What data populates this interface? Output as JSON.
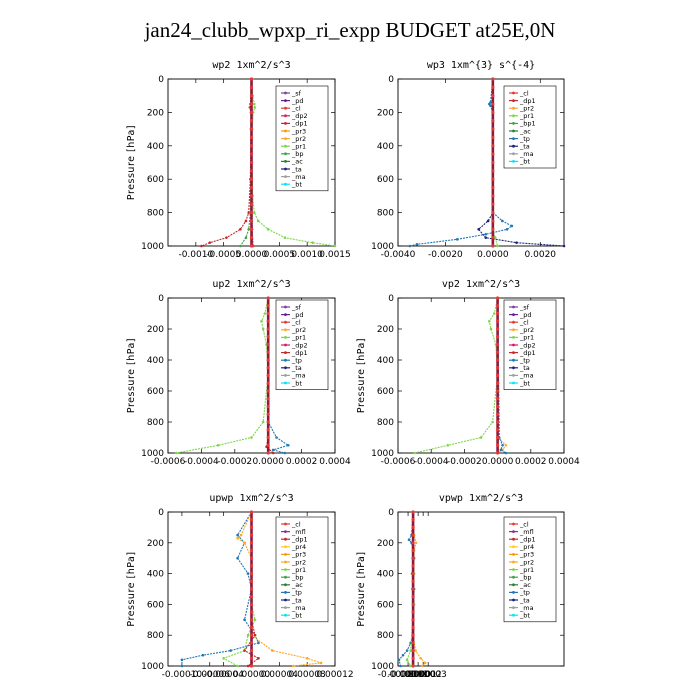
{
  "title": "jan24_clubb_wpxp_ri_expp  BUDGET at25E,0N",
  "colors": {
    "sf": "#7b3fa0",
    "pd": "#6a1b9a",
    "cl": "#e53935",
    "dp2": "#d81b60",
    "dp1": "#c62828",
    "pr3": "#ff9800",
    "pr2": "#ffa726",
    "pr1": "#7cd64a",
    "bp": "#43a047",
    "ac": "#2e7d32",
    "tp": "#1f78b4",
    "ta": "#1a237e",
    "ma": "#9e9e9e",
    "bt": "#00e5ff",
    "mfl": "#8e24aa",
    "pr4": "#ffca28"
  },
  "chart_data": [
    {
      "type": "line",
      "title": "wp2  1xm^2/s^3",
      "ylabel": "Pressure [hPa]",
      "xlim": [
        -0.0015,
        0.0015
      ],
      "ylim": [
        1000,
        0
      ],
      "yticks": [
        0,
        200,
        400,
        600,
        800,
        1000
      ],
      "xtick_labels": [
        "-0.0010",
        "-0.0005",
        "0.0000",
        "0.0005",
        "0.0010",
        "0.0015"
      ],
      "xtick_values": [
        -0.001,
        -0.0005,
        0,
        0.0005,
        0.001,
        0.0015
      ],
      "legend": [
        "_sf",
        "_pd",
        "_cl",
        "_dp2",
        "_dp1",
        "_pr3",
        "_pr2",
        "_pr1",
        "_bp",
        "_ac",
        "_ta",
        "_ma",
        "_bt"
      ],
      "legend_keys": [
        "sf",
        "pd",
        "cl",
        "dp2",
        "dp1",
        "pr3",
        "pr2",
        "pr1",
        "bp",
        "ac",
        "ta",
        "ma",
        "bt"
      ],
      "series": [
        {
          "name": "_pr1",
          "key": "pr1",
          "y": [
            0,
            100,
            150,
            170,
            200,
            300,
            500,
            700,
            800,
            850,
            900,
            950,
            980,
            1000
          ],
          "x": [
            1e-05,
            2e-05,
            5e-05,
            6e-05,
            3e-05,
            1e-05,
            1e-05,
            2e-05,
            5e-05,
            0.00012,
            0.0003,
            0.0006,
            0.0011,
            0.0015
          ]
        },
        {
          "name": "_dp1",
          "key": "dp1",
          "y": [
            0,
            300,
            600,
            800,
            850,
            900,
            950,
            980,
            1000
          ],
          "x": [
            0,
            -1e-05,
            -2e-05,
            -5e-05,
            -0.0001,
            -0.0002,
            -0.00045,
            -0.00075,
            -0.0009
          ]
        },
        {
          "name": "_bp",
          "key": "bp",
          "y": [
            0,
            500,
            800,
            900,
            950,
            1000
          ],
          "x": [
            0,
            0,
            -2e-05,
            -5e-05,
            -0.0001,
            -0.0002
          ]
        },
        {
          "name": "_cl",
          "key": "cl",
          "y": [
            0,
            150,
            170,
            200,
            500,
            900,
            1000
          ],
          "x": [
            0,
            -2e-05,
            -3e-05,
            -1e-05,
            0,
            1e-05,
            3e-05
          ]
        },
        {
          "name": "_pd",
          "key": "pd",
          "y": [
            0,
            500,
            1000
          ],
          "x": [
            0,
            0,
            0
          ]
        }
      ]
    },
    {
      "type": "line",
      "title": "wp3  1xm^{3} s^{-4}",
      "ylabel": "",
      "xlim": [
        -0.004,
        0.003
      ],
      "ylim": [
        1000,
        0
      ],
      "yticks": [
        0,
        200,
        400,
        600,
        800,
        1000
      ],
      "xtick_labels": [
        "-0.0040",
        "-0.0020",
        "0.0000",
        "0.0020"
      ],
      "xtick_values": [
        -0.004,
        -0.002,
        0,
        0.002
      ],
      "legend": [
        "_cl",
        "_dp1",
        "_pr2",
        "_pr1",
        "_bp1",
        "_ac",
        "_tp",
        "_ta",
        "_ma",
        "_bt"
      ],
      "legend_keys": [
        "cl",
        "dp1",
        "pr2",
        "pr1",
        "bp",
        "ac",
        "tp",
        "ta",
        "ma",
        "bt"
      ],
      "series": [
        {
          "name": "_tp",
          "key": "tp",
          "y": [
            0,
            140,
            150,
            160,
            200,
            800,
            850,
            880,
            900,
            930,
            960,
            990,
            1000
          ],
          "x": [
            0,
            -0.0001,
            -0.00015,
            -0.0001,
            0,
            0,
            0.0004,
            0.0008,
            0.0006,
            -0.0003,
            -0.0015,
            -0.0032,
            -0.0035
          ]
        },
        {
          "name": "_ta",
          "key": "ta",
          "y": [
            0,
            800,
            850,
            900,
            950,
            980,
            1000
          ],
          "x": [
            0,
            0,
            -0.0002,
            -0.0006,
            -0.0003,
            0.001,
            0.003
          ]
        },
        {
          "name": "_pr1",
          "key": "pr1",
          "y": [
            0,
            900,
            950,
            1000
          ],
          "x": [
            0,
            0,
            0.0001,
            0.0002
          ]
        },
        {
          "name": "_cl",
          "key": "cl",
          "y": [
            0,
            500,
            1000
          ],
          "x": [
            0,
            0,
            0
          ]
        }
      ]
    },
    {
      "type": "line",
      "title": "up2  1xm^2/s^3",
      "ylabel": "Pressure [hPa]",
      "xlim": [
        -0.0006,
        0.0004
      ],
      "ylim": [
        1000,
        0
      ],
      "yticks": [
        0,
        200,
        400,
        600,
        800,
        1000
      ],
      "xtick_labels": [
        "-0.0006",
        "-0.0004",
        "-0.0002",
        "0.0000",
        "0.0002",
        "0.0004"
      ],
      "xtick_values": [
        -0.0006,
        -0.0004,
        -0.0002,
        0,
        0.0002,
        0.0004
      ],
      "legend": [
        "_sf",
        "_pd",
        "_cl",
        "_pr2",
        "_pr1",
        "_dp2",
        "_dp1",
        "_tp",
        "_ta",
        "_ma",
        "_bt"
      ],
      "legend_keys": [
        "sf",
        "pd",
        "cl",
        "pr2",
        "pr1",
        "dp2",
        "dp1",
        "tp",
        "ta",
        "ma",
        "bt"
      ],
      "series": [
        {
          "name": "_pr1",
          "key": "pr1",
          "y": [
            0,
            100,
            150,
            200,
            300,
            500,
            800,
            900,
            950,
            1000
          ],
          "x": [
            0,
            -2e-05,
            -4e-05,
            -3e-05,
            -1e-05,
            0,
            -3e-05,
            -0.0001,
            -0.0003,
            -0.00055
          ]
        },
        {
          "name": "_tp",
          "key": "tp",
          "y": [
            0,
            800,
            900,
            950,
            980,
            1000
          ],
          "x": [
            0,
            0,
            5e-05,
            0.00012,
            3e-05,
            0.0001
          ]
        },
        {
          "name": "_dp1",
          "key": "dp1",
          "y": [
            0,
            900,
            960,
            1000
          ],
          "x": [
            0,
            0,
            -1e-05,
            3e-05
          ]
        },
        {
          "name": "_cl",
          "key": "cl",
          "y": [
            0,
            500,
            1000
          ],
          "x": [
            0,
            0,
            0
          ]
        }
      ]
    },
    {
      "type": "line",
      "title": "vp2  1xm^2/s^3",
      "ylabel": "Pressure [hPa]",
      "xlim": [
        -0.0006,
        0.0004
      ],
      "ylim": [
        1000,
        0
      ],
      "yticks": [
        0,
        200,
        400,
        600,
        800,
        1000
      ],
      "xtick_labels": [
        "-0.0006",
        "-0.0004",
        "-0.0002",
        "0.0000",
        "0.0002",
        "0.0004"
      ],
      "xtick_values": [
        -0.0006,
        -0.0004,
        -0.0002,
        0,
        0.0002,
        0.0004
      ],
      "legend": [
        "_sf",
        "_pd",
        "_cl",
        "_pr2",
        "_pr1",
        "_dp2",
        "_dp1",
        "_tp",
        "_ta",
        "_ma",
        "_bt"
      ],
      "legend_keys": [
        "sf",
        "pd",
        "cl",
        "pr2",
        "pr1",
        "dp2",
        "dp1",
        "tp",
        "ta",
        "ma",
        "bt"
      ],
      "series": [
        {
          "name": "_pr1",
          "key": "pr1",
          "y": [
            0,
            100,
            150,
            200,
            300,
            500,
            800,
            900,
            950,
            1000
          ],
          "x": [
            0,
            -2e-05,
            -5e-05,
            -4e-05,
            -1e-05,
            0,
            -3e-05,
            -0.0001,
            -0.0003,
            -0.0005
          ]
        },
        {
          "name": "_pr2",
          "key": "pr2",
          "y": [
            0,
            900,
            950,
            980,
            1000
          ],
          "x": [
            0,
            0,
            5e-05,
            3e-05,
            0
          ]
        },
        {
          "name": "_tp",
          "key": "tp",
          "y": [
            0,
            900,
            950,
            980,
            1000
          ],
          "x": [
            0,
            1e-05,
            3e-05,
            2e-05,
            5e-05
          ]
        },
        {
          "name": "_cl",
          "key": "cl",
          "y": [
            0,
            500,
            1000
          ],
          "x": [
            0,
            0,
            0
          ]
        }
      ]
    },
    {
      "type": "line",
      "title": "upwp  1xm^2/s^3",
      "ylabel": "Pressure [hPa]",
      "xlim": [
        -0.00012,
        0.00012
      ],
      "ylim": [
        1000,
        0
      ],
      "yticks": [
        0,
        200,
        400,
        600,
        800,
        1000
      ],
      "xtick_labels": [
        "-0.00010",
        "-0.00006",
        "-0.00004",
        "0.00000",
        "0.00004",
        "0.00008",
        "0.00012"
      ],
      "xtick_values": [
        -0.0001,
        -6e-05,
        -4e-05,
        0,
        4e-05,
        8e-05,
        0.00012
      ],
      "legend": [
        "_cl",
        "_mfl",
        "_dp1",
        "_pr4",
        "_pr3",
        "_pr2",
        "_pr1",
        "_bp",
        "_ac",
        "_tp",
        "_ta",
        "_ma",
        "_bt"
      ],
      "legend_keys": [
        "cl",
        "mfl",
        "dp1",
        "pr4",
        "pr3",
        "pr2",
        "pr1",
        "bp",
        "ac",
        "tp",
        "ta",
        "ma",
        "bt"
      ],
      "series": [
        {
          "name": "_tp",
          "key": "tp",
          "y": [
            0,
            150,
            200,
            300,
            400,
            500,
            700,
            800,
            850,
            900,
            930,
            960,
            1000
          ],
          "x": [
            0,
            -2e-05,
            -1e-05,
            -2e-05,
            -5e-06,
            0,
            -1e-05,
            5e-06,
            1e-05,
            -3e-05,
            -7e-05,
            -0.0001,
            -0.0001
          ]
        },
        {
          "name": "_pr2",
          "key": "pr2",
          "y": [
            0,
            150,
            170,
            200,
            300,
            800,
            900,
            950,
            980,
            1000
          ],
          "x": [
            0,
            -1.5e-05,
            -2e-05,
            -1e-05,
            0,
            0,
            3e-05,
            8e-05,
            0.0001,
            6e-05
          ]
        },
        {
          "name": "_pr1",
          "key": "pr1",
          "y": [
            0,
            600,
            700,
            800,
            900,
            950,
            1000
          ],
          "x": [
            0,
            0,
            5e-06,
            -5e-06,
            -1e-05,
            -4e-05,
            -2e-05
          ]
        },
        {
          "name": "_dp1",
          "key": "dp1",
          "y": [
            0,
            700,
            800,
            900,
            950,
            1000
          ],
          "x": [
            0,
            0,
            5e-06,
            -1e-05,
            1e-05,
            -5e-06
          ]
        },
        {
          "name": "_cl",
          "key": "cl",
          "y": [
            0,
            500,
            1000
          ],
          "x": [
            0,
            0,
            0
          ]
        }
      ]
    },
    {
      "type": "line",
      "title": "vpwp  1xm^2/s^3",
      "ylabel": "Pressure [hPa]",
      "xlim": [
        -3e-05,
        0.0003
      ],
      "ylim": [
        1000,
        0
      ],
      "yticks": [
        0,
        200,
        400,
        600,
        800,
        1000
      ],
      "xtick_labels": [
        "-0.00003",
        "-0.00001",
        "0.00001",
        "0.00002",
        "0.00003"
      ],
      "xtick_values": [
        -3e-05,
        -1e-05,
        1e-05,
        2e-05,
        3e-05
      ],
      "legend": [
        "_cl",
        "_mfl",
        "_dp1",
        "_pr4",
        "_pr3",
        "_pr2",
        "_pr1",
        "_bp",
        "_ac",
        "_tp",
        "_ta",
        "_ma",
        "_bt"
      ],
      "legend_keys": [
        "cl",
        "mfl",
        "dp1",
        "pr4",
        "pr3",
        "pr2",
        "pr1",
        "bp",
        "ac",
        "tp",
        "ta",
        "ma",
        "bt"
      ],
      "series": [
        {
          "name": "_tp",
          "key": "tp",
          "y": [
            0,
            150,
            180,
            200,
            300,
            400,
            500,
            800,
            850,
            900,
            930,
            960,
            1000
          ],
          "x": [
            0,
            -3e-06,
            -8e-06,
            -3e-06,
            2e-06,
            -2e-06,
            2e-06,
            0,
            -5e-06,
            -1.2e-05,
            -2e-05,
            -2.8e-05,
            -2.5e-05
          ]
        },
        {
          "name": "_pr2",
          "key": "pr2",
          "y": [
            0,
            150,
            200,
            250,
            800,
            900,
            950,
            980,
            1000
          ],
          "x": [
            0,
            2e-06,
            6e-06,
            2e-06,
            0,
            5e-06,
            1.5e-05,
            2.4e-05,
            1.8e-05
          ]
        },
        {
          "name": "_pr1",
          "key": "pr1",
          "y": [
            0,
            300,
            400,
            500,
            600,
            700,
            900,
            960,
            1000
          ],
          "x": [
            0,
            -1e-06,
            2e-06,
            -2e-06,
            2e-06,
            -1e-06,
            -5e-06,
            -1.2e-05,
            -5e-06
          ]
        },
        {
          "name": "_cl",
          "key": "cl",
          "y": [
            0,
            500,
            1000
          ],
          "x": [
            0,
            0,
            0
          ]
        }
      ]
    }
  ]
}
